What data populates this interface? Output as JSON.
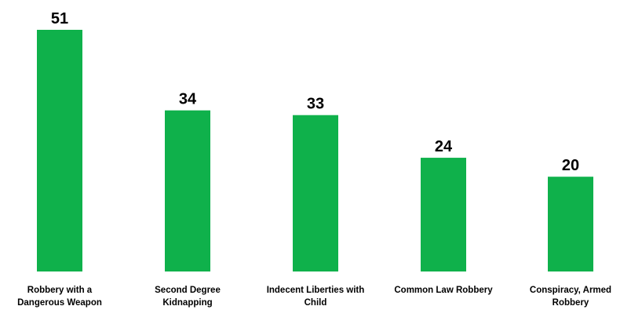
{
  "chart_data": {
    "type": "bar",
    "title": "",
    "xlabel": "",
    "ylabel": "",
    "categories": [
      "Robbery with a\nDangerous Weapon",
      "Second Degree\nKidnapping",
      "Indecent Liberties with\nChild",
      "Common Law Robbery",
      "Conspiracy, Armed\nRobbery"
    ],
    "values": [
      51,
      34,
      33,
      24,
      20
    ],
    "ylim": [
      0,
      51
    ],
    "grid": false,
    "legend": false,
    "data_labels": true,
    "colors": {
      "bar": "#0fb14b",
      "label": "#000000"
    }
  }
}
